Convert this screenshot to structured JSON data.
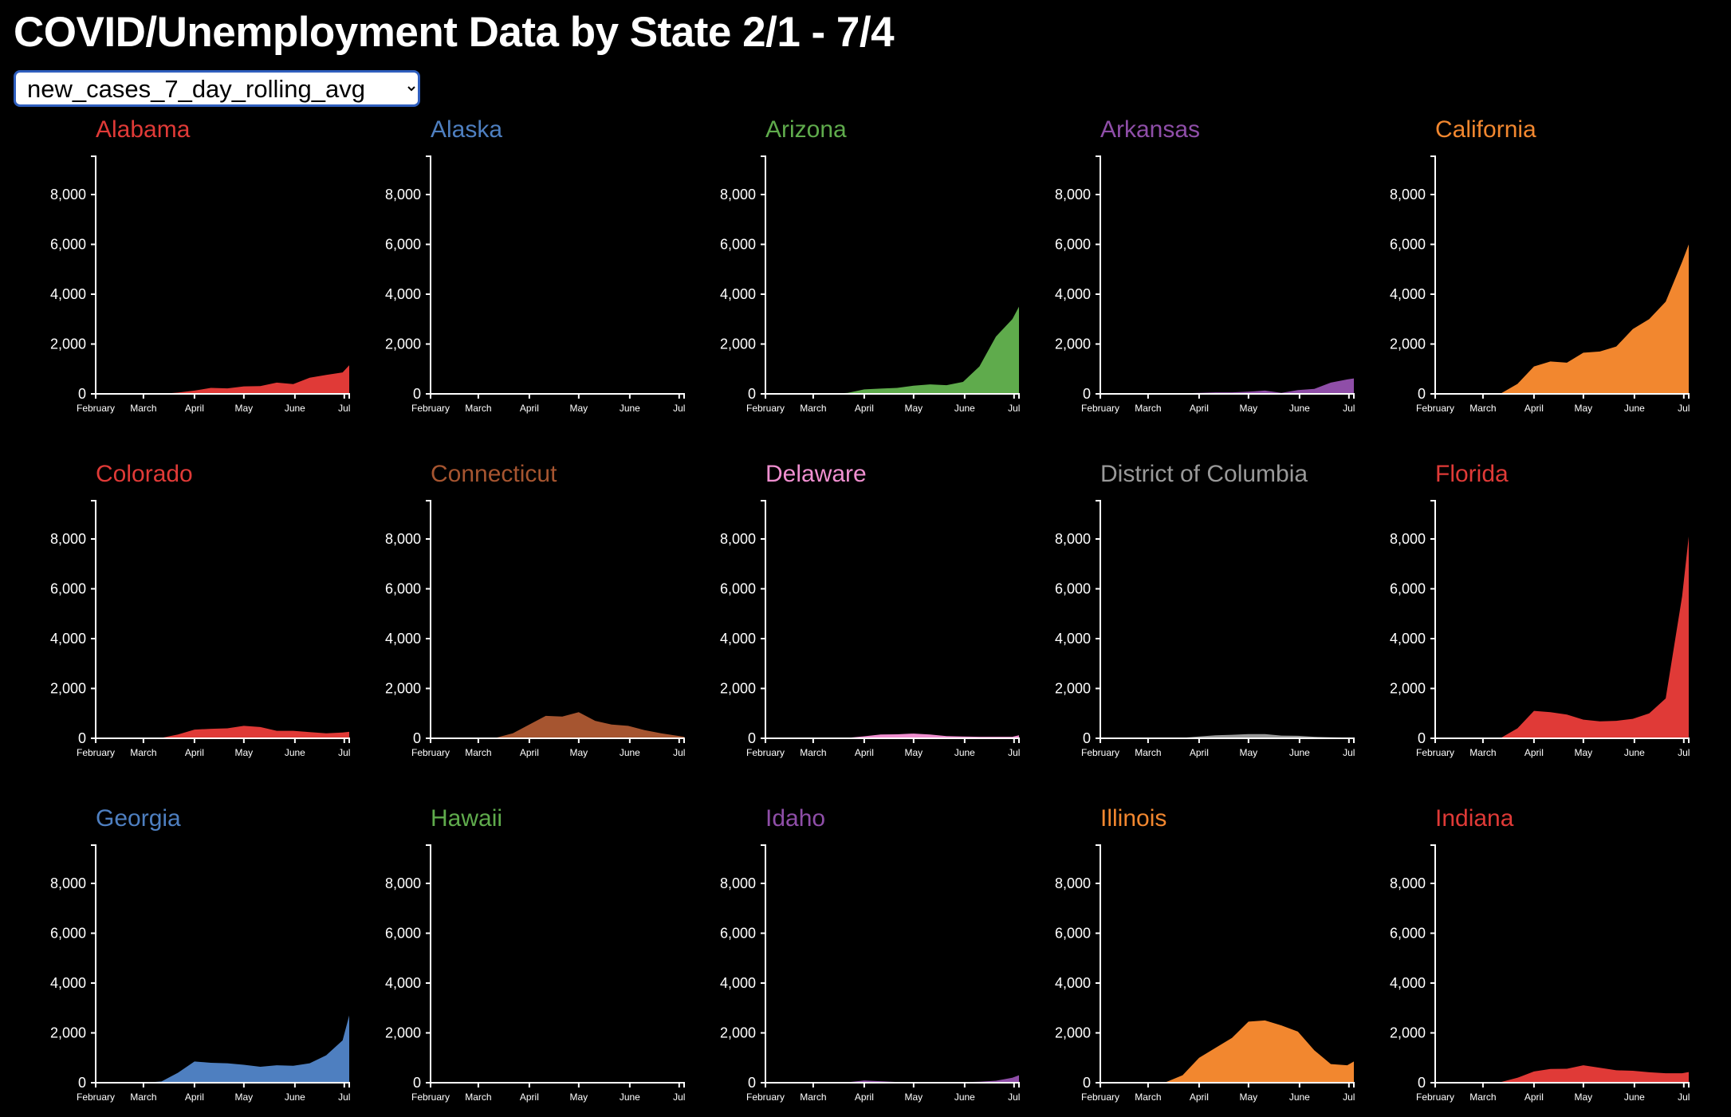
{
  "page": {
    "title": "COVID/Unemployment Data by State 2/1 - 7/4"
  },
  "metric_select": {
    "selected": "new_cases_7_day_rolling_avg",
    "options": [
      "new_cases_7_day_rolling_avg"
    ]
  },
  "chart_data": {
    "type": "area",
    "metric": "new_cases_7_day_rolling_avg",
    "x_dates": [
      "2020-02-01",
      "2020-02-11",
      "2020-02-21",
      "2020-03-02",
      "2020-03-12",
      "2020-03-22",
      "2020-04-01",
      "2020-04-11",
      "2020-04-21",
      "2020-05-01",
      "2020-05-11",
      "2020-05-21",
      "2020-05-31",
      "2020-06-10",
      "2020-06-20",
      "2020-06-30",
      "2020-07-04"
    ],
    "x_tick_labels": [
      "February",
      "March",
      "April",
      "May",
      "June",
      "Jul"
    ],
    "x_tick_dates": [
      "2020-02-01",
      "2020-03-01",
      "2020-04-01",
      "2020-05-01",
      "2020-06-01",
      "2020-07-01"
    ],
    "y_ticks": [
      0,
      2000,
      4000,
      6000,
      8000
    ],
    "y_tick_labels": [
      "0",
      "2,000",
      "4,000",
      "6,000",
      "8,000"
    ],
    "ylim": [
      0,
      9600
    ],
    "grid": false,
    "series": [
      {
        "name": "Alabama",
        "color": "#e03a37",
        "values": [
          0,
          0,
          0,
          0,
          0,
          50,
          130,
          240,
          220,
          300,
          310,
          450,
          390,
          650,
          760,
          860,
          1150
        ]
      },
      {
        "name": "Alaska",
        "color": "#4e7fc0",
        "values": [
          0,
          0,
          0,
          0,
          0,
          0,
          5,
          5,
          5,
          5,
          5,
          5,
          10,
          10,
          15,
          20,
          25
        ]
      },
      {
        "name": "Arizona",
        "color": "#5fab4c",
        "values": [
          0,
          0,
          0,
          0,
          0,
          40,
          180,
          210,
          240,
          330,
          380,
          350,
          480,
          1100,
          2300,
          3000,
          3500
        ]
      },
      {
        "name": "Arkansas",
        "color": "#8f4ea8",
        "values": [
          0,
          0,
          0,
          0,
          0,
          20,
          40,
          60,
          60,
          90,
          130,
          40,
          150,
          200,
          450,
          580,
          620
        ]
      },
      {
        "name": "California",
        "color": "#f2872f",
        "values": [
          0,
          0,
          0,
          0,
          20,
          400,
          1100,
          1300,
          1250,
          1650,
          1700,
          1900,
          2600,
          3000,
          3700,
          5300,
          6000
        ]
      },
      {
        "name": "Colorado",
        "color": "#e03a37",
        "values": [
          0,
          0,
          0,
          0,
          20,
          150,
          350,
          380,
          400,
          500,
          450,
          300,
          300,
          250,
          200,
          230,
          260
        ]
      },
      {
        "name": "Connecticut",
        "color": "#a65530",
        "values": [
          0,
          0,
          0,
          0,
          30,
          200,
          550,
          900,
          870,
          1050,
          700,
          550,
          500,
          330,
          200,
          100,
          60
        ]
      },
      {
        "name": "Delaware",
        "color": "#f08fd0",
        "values": [
          0,
          0,
          0,
          0,
          0,
          20,
          80,
          150,
          160,
          190,
          150,
          90,
          70,
          60,
          60,
          60,
          120
        ]
      },
      {
        "name": "District of Columbia",
        "color": "#999999",
        "values": [
          0,
          0,
          0,
          0,
          0,
          20,
          70,
          120,
          140,
          170,
          170,
          110,
          100,
          60,
          40,
          30,
          30
        ]
      },
      {
        "name": "Florida",
        "color": "#e03a37",
        "values": [
          0,
          0,
          0,
          0,
          20,
          400,
          1100,
          1050,
          950,
          750,
          680,
          700,
          780,
          1000,
          1600,
          5700,
          8100
        ]
      },
      {
        "name": "Georgia",
        "color": "#4e7fc0",
        "values": [
          0,
          0,
          0,
          0,
          50,
          400,
          850,
          800,
          780,
          720,
          640,
          700,
          680,
          780,
          1100,
          1700,
          2700
        ]
      },
      {
        "name": "Hawaii",
        "color": "#5fab4c",
        "values": [
          0,
          0,
          0,
          0,
          0,
          5,
          15,
          20,
          10,
          5,
          5,
          5,
          5,
          10,
          15,
          20,
          25
        ]
      },
      {
        "name": "Idaho",
        "color": "#8f4ea8",
        "values": [
          0,
          0,
          0,
          0,
          0,
          20,
          90,
          60,
          30,
          20,
          20,
          20,
          20,
          40,
          80,
          200,
          300
        ]
      },
      {
        "name": "Illinois",
        "color": "#f2872f",
        "values": [
          0,
          0,
          0,
          0,
          30,
          300,
          1000,
          1400,
          1800,
          2450,
          2500,
          2300,
          2050,
          1300,
          750,
          700,
          850
        ]
      },
      {
        "name": "Indiana",
        "color": "#e03a37",
        "values": [
          0,
          0,
          0,
          0,
          30,
          200,
          450,
          550,
          560,
          700,
          600,
          500,
          480,
          420,
          380,
          380,
          430
        ]
      }
    ]
  }
}
